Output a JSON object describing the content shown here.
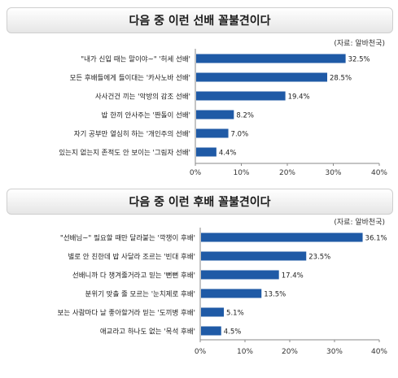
{
  "charts": [
    {
      "title": "다음 중 이런 선배 꼴불견이다",
      "source": "(자료: 알바천국)",
      "color": "#1f5aa6"
    },
    {
      "title": "다음 중 이런 후배 꼴불견이다",
      "source": "(자료: 알바천국)",
      "color": "#1f5aa6"
    }
  ],
  "chart_data": [
    {
      "type": "bar",
      "orientation": "horizontal",
      "title": "다음 중 이런 선배 꼴불견이다",
      "categories": [
        "\"내가 신입 때는 말이야~\" '허세 선배'",
        "모든 후배들에게 들이대는 '카사노바 선배'",
        "사사건건 끼는 '악방의 감조 선배'",
        "밥 한끼 안사주는 '짠돌이 선배'",
        "자기 공부만 열심히 하는 '개인주의 선배'",
        "있는지 없는지 존적도 안 보이는 '그림자 선배'"
      ],
      "values": [
        32.5,
        28.5,
        19.4,
        8.2,
        7.0,
        4.4
      ],
      "value_labels": [
        "32.5%",
        "28.5%",
        "19.4%",
        "8.2%",
        "7.0%",
        "4.4%"
      ],
      "xlim": [
        0,
        40
      ],
      "xticks": [
        "0%",
        "10%",
        "20%",
        "30%",
        "40%"
      ],
      "grid": false
    },
    {
      "type": "bar",
      "orientation": "horizontal",
      "title": "다음 중 이런 후배 꼴불견이다",
      "categories": [
        "\"선배님~\" 필요할 때만 달라붙는 '깍쟁이 후배'",
        "별로 안 친한데 밥 사달라 조르는 '빈대 후배'",
        "선배니까 다 챙겨줄거라고 믿는 '뻔뻔 후배'",
        "분위기 맞출 줄 모르는 '눈치제로 후배'",
        "보는 사람마다 날 좋아할거라 믿는 '도끼병 후배'",
        "애교라고 하나도 없는 '목석 후배'"
      ],
      "values": [
        36.1,
        23.5,
        17.4,
        13.5,
        5.1,
        4.5
      ],
      "value_labels": [
        "36.1%",
        "23.5%",
        "17.4%",
        "13.5%",
        "5.1%",
        "4.5%"
      ],
      "xlim": [
        0,
        40
      ],
      "xticks": [
        "0%",
        "10%",
        "20%",
        "30%",
        "40%"
      ],
      "grid": false
    }
  ]
}
